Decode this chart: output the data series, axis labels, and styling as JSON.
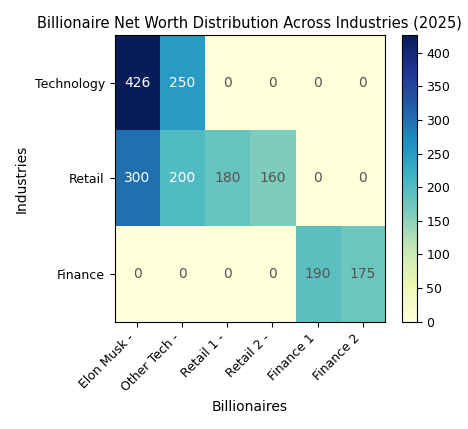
{
  "title": "Billionaire Net Worth Distribution Across Industries (2025)",
  "xlabel": "Billionaires",
  "ylabel": "Industries",
  "x_labels": [
    "Elon Musk -",
    "Other Tech -",
    "Retail 1 -",
    "Retail 2 -",
    "Finance 1",
    "Finance 2"
  ],
  "y_labels": [
    "Technology",
    "Retail",
    "Finance"
  ],
  "data": [
    [
      426,
      250,
      0,
      0,
      0,
      0
    ],
    [
      300,
      200,
      180,
      160,
      0,
      0
    ],
    [
      0,
      0,
      0,
      0,
      190,
      175
    ]
  ],
  "cmap": "YlGnBu",
  "vmin": 0,
  "vmax": 426,
  "colorbar_ticks": [
    0,
    50,
    100,
    150,
    200,
    250,
    300,
    350,
    400
  ],
  "annot_fontsize": 10,
  "title_fontsize": 10.5,
  "label_fontsize": 10,
  "tick_fontsize": 9
}
